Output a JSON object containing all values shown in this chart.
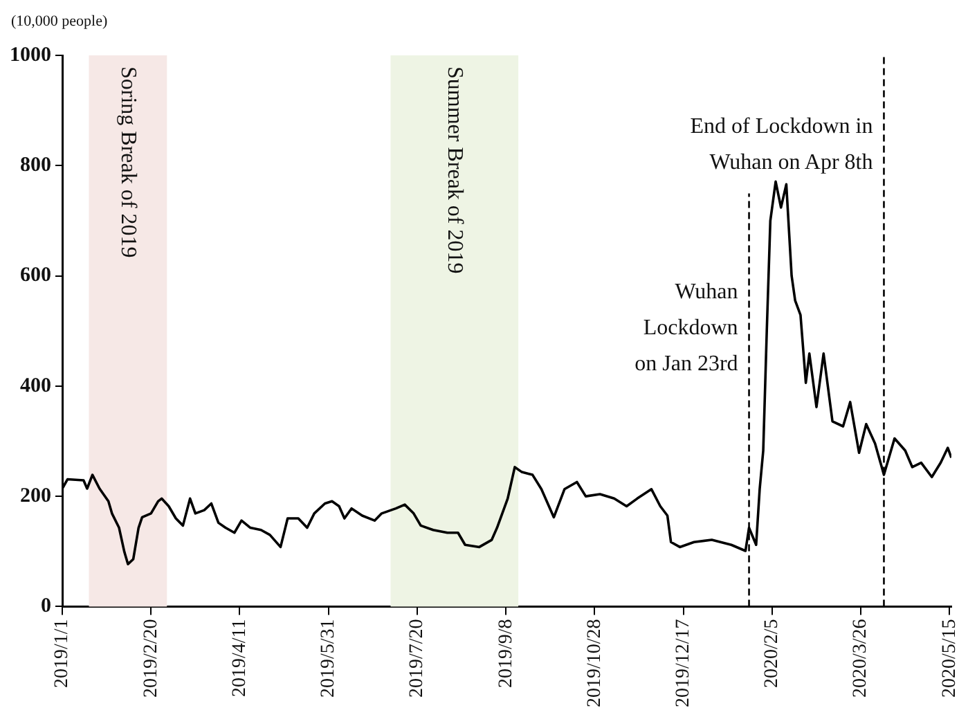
{
  "chart_data": {
    "type": "line",
    "ylabel": "(10,000 people)",
    "xlim": [
      "2019-01-01",
      "2020-05-16"
    ],
    "ylim": [
      0,
      1000
    ],
    "yticks": [
      0,
      200,
      400,
      600,
      800,
      1000
    ],
    "xticks": [
      {
        "value": "2019-01-01",
        "label": "2019/1/1"
      },
      {
        "value": "2019-02-20",
        "label": "2019/2/20"
      },
      {
        "value": "2019-04-11",
        "label": "2019/4/11"
      },
      {
        "value": "2019-05-31",
        "label": "2019/5/31"
      },
      {
        "value": "2019-07-20",
        "label": "2019/7/20"
      },
      {
        "value": "2019-09-08",
        "label": "2019/9/8"
      },
      {
        "value": "2019-10-28",
        "label": "2019/10/28"
      },
      {
        "value": "2019-12-17",
        "label": "2019/12/17"
      },
      {
        "value": "2020-02-05",
        "label": "2020/2/5"
      },
      {
        "value": "2020-03-26",
        "label": "2020/3/26"
      },
      {
        "value": "2020-05-15",
        "label": "2020/5/15"
      }
    ],
    "grid": false,
    "marker": "none",
    "line_style": "solid",
    "x": [
      "2019-01-01",
      "2019-01-04",
      "2019-01-13",
      "2019-01-15",
      "2019-01-18",
      "2019-01-22",
      "2019-01-27",
      "2019-01-29",
      "2019-02-02",
      "2019-02-05",
      "2019-02-07",
      "2019-02-10",
      "2019-02-13",
      "2019-02-15",
      "2019-02-20",
      "2019-02-24",
      "2019-02-26",
      "2019-03-02",
      "2019-03-06",
      "2019-03-10",
      "2019-03-14",
      "2019-03-17",
      "2019-03-22",
      "2019-03-26",
      "2019-03-30",
      "2019-04-03",
      "2019-04-08",
      "2019-04-12",
      "2019-04-17",
      "2019-04-23",
      "2019-04-28",
      "2019-05-04",
      "2019-05-08",
      "2019-05-14",
      "2019-05-19",
      "2019-05-23",
      "2019-05-29",
      "2019-06-02",
      "2019-06-06",
      "2019-06-09",
      "2019-06-13",
      "2019-06-19",
      "2019-06-26",
      "2019-06-30",
      "2019-07-08",
      "2019-07-13",
      "2019-07-18",
      "2019-07-22",
      "2019-07-29",
      "2019-08-06",
      "2019-08-12",
      "2019-08-16",
      "2019-08-24",
      "2019-08-31",
      "2019-09-03",
      "2019-09-09",
      "2019-09-13",
      "2019-09-17",
      "2019-09-23",
      "2019-09-28",
      "2019-10-05",
      "2019-10-11",
      "2019-10-18",
      "2019-10-23",
      "2019-10-31",
      "2019-11-08",
      "2019-11-15",
      "2019-11-21",
      "2019-11-29",
      "2019-12-04",
      "2019-12-08",
      "2019-12-10",
      "2019-12-15",
      "2019-12-23",
      "2020-01-02",
      "2020-01-13",
      "2020-01-21",
      "2020-01-23",
      "2020-01-27",
      "2020-01-29",
      "2020-01-31",
      "2020-02-02",
      "2020-02-04",
      "2020-02-07",
      "2020-02-10",
      "2020-02-13",
      "2020-02-16",
      "2020-02-18",
      "2020-02-21",
      "2020-02-24",
      "2020-02-26",
      "2020-03-01",
      "2020-03-05",
      "2020-03-10",
      "2020-03-16",
      "2020-03-20",
      "2020-03-25",
      "2020-03-29",
      "2020-04-03",
      "2020-04-08",
      "2020-04-14",
      "2020-04-20",
      "2020-04-24",
      "2020-04-29",
      "2020-05-05",
      "2020-05-10",
      "2020-05-14",
      "2020-05-16"
    ],
    "series": [
      {
        "color": "#000000",
        "values": [
          214,
          231,
          229,
          214,
          239,
          214,
          191,
          169,
          143,
          99,
          77,
          86,
          143,
          162,
          169,
          191,
          196,
          182,
          160,
          147,
          196,
          169,
          175,
          187,
          152,
          143,
          134,
          156,
          143,
          139,
          130,
          108,
          160,
          160,
          143,
          169,
          187,
          191,
          182,
          160,
          178,
          165,
          156,
          169,
          178,
          185,
          169,
          147,
          139,
          134,
          134,
          112,
          108,
          121,
          143,
          196,
          253,
          244,
          239,
          213,
          162,
          213,
          226,
          200,
          204,
          196,
          182,
          196,
          213,
          182,
          165,
          117,
          108,
          117,
          121,
          112,
          101,
          143,
          112,
          213,
          283,
          500,
          700,
          771,
          724,
          766,
          600,
          555,
          529,
          406,
          459,
          362,
          459,
          336,
          327,
          371,
          279,
          331,
          296,
          239,
          305,
          283,
          253,
          261,
          235,
          261,
          288,
          270
        ]
      }
    ],
    "ref_lines": [
      {
        "axis": "x",
        "value": "2020-01-23",
        "line_style": "dashed",
        "color": "#000000"
      },
      {
        "axis": "x",
        "value": "2020-04-08",
        "line_style": "dashed",
        "color": "#000000"
      }
    ],
    "bands": [
      {
        "axis": "x",
        "from": "2019-01-16",
        "to": "2019-03-01",
        "label": "Soring Break of 2019",
        "color": "#f6e8e6"
      },
      {
        "axis": "x",
        "from": "2019-07-05",
        "to": "2019-09-15",
        "label": "Summer Break of 2019",
        "color": "#eef4e4"
      }
    ],
    "annotations": [
      {
        "text": "Wuhan\nLockdown\non Jan 23rd",
        "x": "2020-01-23",
        "y": 590
      },
      {
        "text": "End of Lockdown in\nWuhan on Apr 8th",
        "x": "2020-04-08",
        "y": 890
      }
    ]
  }
}
